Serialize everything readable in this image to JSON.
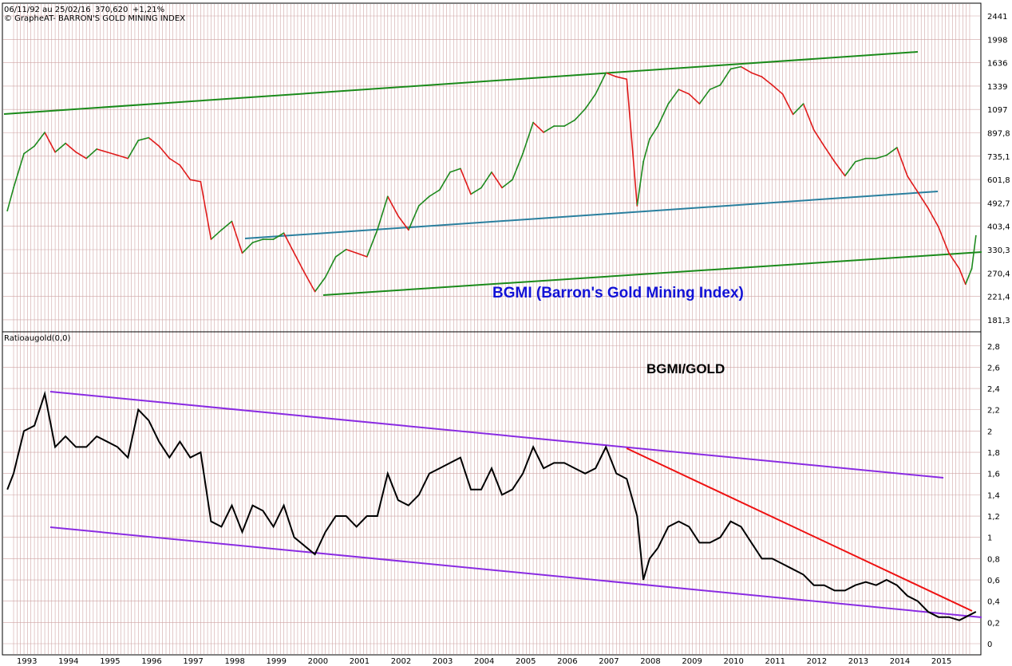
{
  "header": {
    "range": "06/11/92 au 25/02/16",
    "last_value": "370,620",
    "change": "+1,21%",
    "copyright": "© GrapheAT- BARRON'S GOLD MINING INDEX"
  },
  "colors": {
    "grid": "#cfa4a4",
    "up": "#1e8a1e",
    "down": "#e01b1b",
    "channel_green": "#1a8a1a",
    "channel_teal": "#2a7f9e",
    "purple": "#8a2be2",
    "red_line": "#ee1111",
    "ratio_line": "#000000",
    "title_blue": "#1212d6"
  },
  "chart_data": [
    {
      "type": "line",
      "title": "BGMI (Barron's Gold Mining Index)",
      "y_scale": "log",
      "y_ticks": [
        "2441",
        "1998",
        "1636",
        "1339",
        "1097",
        "897,8",
        "735,1",
        "601,8",
        "492,7",
        "403,4",
        "330,3",
        "270,4",
        "221,4",
        "181,3"
      ],
      "x": [
        1992.85,
        1993.0,
        1993.25,
        1993.5,
        1993.75,
        1994.0,
        1994.25,
        1994.5,
        1994.75,
        1995.0,
        1995.25,
        1995.5,
        1995.75,
        1996.0,
        1996.25,
        1996.5,
        1996.75,
        1997.0,
        1997.25,
        1997.5,
        1997.75,
        1998.0,
        1998.25,
        1998.5,
        1998.75,
        1999.0,
        1999.25,
        1999.5,
        1999.75,
        2000.0,
        2000.25,
        2000.5,
        2000.75,
        2001.0,
        2001.25,
        2001.5,
        2001.75,
        2002.0,
        2002.25,
        2002.5,
        2002.75,
        2003.0,
        2003.25,
        2003.5,
        2003.75,
        2004.0,
        2004.25,
        2004.5,
        2004.75,
        2005.0,
        2005.25,
        2005.5,
        2005.75,
        2006.0,
        2006.25,
        2006.5,
        2006.75,
        2007.0,
        2007.25,
        2007.5,
        2007.75,
        2008.0,
        2008.15,
        2008.3,
        2008.5,
        2008.75,
        2009.0,
        2009.25,
        2009.5,
        2009.75,
        2010.0,
        2010.25,
        2010.5,
        2010.75,
        2011.0,
        2011.25,
        2011.5,
        2011.75,
        2012.0,
        2012.25,
        2012.5,
        2012.75,
        2013.0,
        2013.25,
        2013.5,
        2013.75,
        2014.0,
        2014.25,
        2014.5,
        2014.75,
        2015.0,
        2015.25,
        2015.5,
        2015.75,
        2015.9,
        2016.05,
        2016.15
      ],
      "series": [
        {
          "values": [
            460,
            560,
            750,
            800,
            900,
            760,
            820,
            760,
            720,
            780,
            760,
            740,
            720,
            840,
            860,
            800,
            720,
            680,
            600,
            590,
            360,
            390,
            420,
            320,
            350,
            360,
            360,
            380,
            320,
            270,
            230,
            260,
            310,
            330,
            320,
            310,
            390,
            520,
            440,
            390,
            480,
            520,
            550,
            640,
            660,
            530,
            560,
            640,
            560,
            600,
            750,
            980,
            900,
            950,
            950,
            1000,
            1100,
            1250,
            1500,
            1450,
            1420,
            480,
            700,
            850,
            950,
            1150,
            1300,
            1250,
            1150,
            1300,
            1350,
            1550,
            1580,
            1500,
            1450,
            1350,
            1250,
            1050,
            1150,
            920,
            800,
            700,
            620,
            700,
            720,
            720,
            740,
            790,
            620,
            540,
            470,
            400,
            320,
            280,
            245,
            280,
            371
          ]
        }
      ]
    },
    {
      "type": "line",
      "title": "BGMI/GOLD",
      "panel_label": "Ratioaugold(0,0)",
      "y_ticks": [
        "2,8",
        "2,6",
        "2,4",
        "2,2",
        "2",
        "1,8",
        "1,6",
        "1,4",
        "1,2",
        "1",
        "0,8",
        "0,6",
        "0,4",
        "0,2",
        "0"
      ],
      "x_ticks": [
        "1993",
        "1994",
        "1995",
        "1996",
        "1997",
        "1998",
        "1999",
        "2000",
        "2001",
        "2002",
        "2003",
        "2004",
        "2005",
        "2006",
        "2007",
        "2008",
        "2009",
        "2010",
        "2011",
        "2012",
        "2013",
        "2014",
        "2015"
      ],
      "x": [
        1992.85,
        1993.0,
        1993.25,
        1993.5,
        1993.75,
        1994.0,
        1994.25,
        1994.5,
        1994.75,
        1995.0,
        1995.25,
        1995.5,
        1995.75,
        1996.0,
        1996.25,
        1996.5,
        1996.75,
        1997.0,
        1997.25,
        1997.5,
        1997.75,
        1998.0,
        1998.25,
        1998.5,
        1998.75,
        1999.0,
        1999.25,
        1999.5,
        1999.75,
        2000.0,
        2000.25,
        2000.5,
        2000.75,
        2001.0,
        2001.25,
        2001.5,
        2001.75,
        2002.0,
        2002.25,
        2002.5,
        2002.75,
        2003.0,
        2003.25,
        2003.5,
        2003.75,
        2004.0,
        2004.25,
        2004.5,
        2004.75,
        2005.0,
        2005.25,
        2005.5,
        2005.75,
        2006.0,
        2006.25,
        2006.5,
        2006.75,
        2007.0,
        2007.25,
        2007.5,
        2007.75,
        2008.0,
        2008.15,
        2008.3,
        2008.5,
        2008.75,
        2009.0,
        2009.25,
        2009.5,
        2009.75,
        2010.0,
        2010.25,
        2010.5,
        2010.75,
        2011.0,
        2011.25,
        2011.5,
        2011.75,
        2012.0,
        2012.25,
        2012.5,
        2012.75,
        2013.0,
        2013.25,
        2013.5,
        2013.75,
        2014.0,
        2014.25,
        2014.5,
        2014.75,
        2015.0,
        2015.25,
        2015.5,
        2015.75,
        2015.9,
        2016.05,
        2016.15
      ],
      "series": [
        {
          "values": [
            1.45,
            1.6,
            2.0,
            2.05,
            2.35,
            1.85,
            1.95,
            1.85,
            1.85,
            1.95,
            1.9,
            1.85,
            1.75,
            2.2,
            2.1,
            1.9,
            1.75,
            1.9,
            1.75,
            1.8,
            1.15,
            1.1,
            1.3,
            1.05,
            1.3,
            1.25,
            1.1,
            1.3,
            1.0,
            0.92,
            0.84,
            1.05,
            1.2,
            1.2,
            1.1,
            1.2,
            1.2,
            1.6,
            1.35,
            1.3,
            1.4,
            1.6,
            1.65,
            1.7,
            1.75,
            1.45,
            1.45,
            1.65,
            1.4,
            1.45,
            1.6,
            1.85,
            1.65,
            1.7,
            1.7,
            1.65,
            1.6,
            1.65,
            1.85,
            1.6,
            1.55,
            1.2,
            0.6,
            0.8,
            0.9,
            1.1,
            1.15,
            1.1,
            0.95,
            0.95,
            1.0,
            1.15,
            1.1,
            0.95,
            0.8,
            0.8,
            0.75,
            0.7,
            0.65,
            0.55,
            0.55,
            0.5,
            0.5,
            0.55,
            0.58,
            0.55,
            0.6,
            0.55,
            0.45,
            0.4,
            0.3,
            0.25,
            0.25,
            0.22,
            0.25,
            0.28,
            0.3
          ]
        }
      ]
    }
  ]
}
